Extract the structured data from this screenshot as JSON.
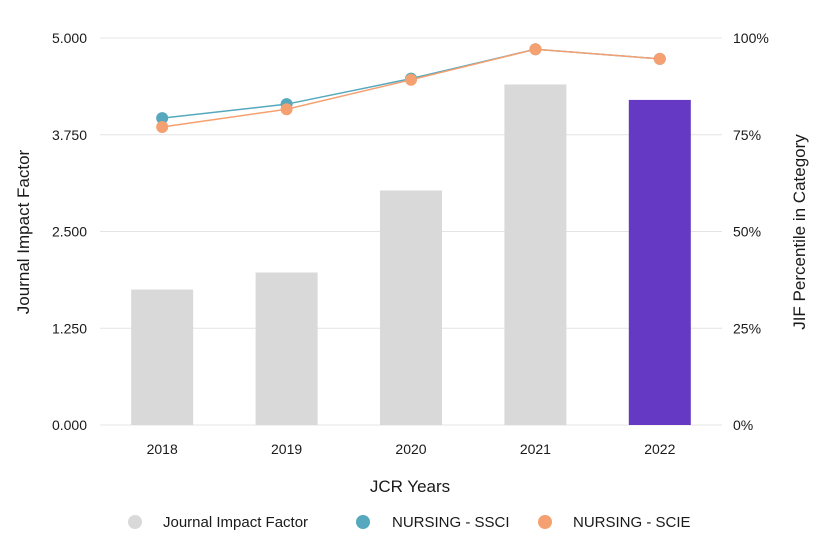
{
  "chart_data": {
    "type": "bar",
    "categories": [
      "2018",
      "2019",
      "2020",
      "2021",
      "2022"
    ],
    "xlabel": "JCR Years",
    "ylabel": "Journal Impact Factor",
    "y2label": "JIF Percentile in Category",
    "ylim": [
      0,
      5
    ],
    "y2lim": [
      0,
      100
    ],
    "yticks": [
      "0.000",
      "1.250",
      "2.500",
      "3.750",
      "5.000"
    ],
    "y2ticks": [
      "0%",
      "25%",
      "50%",
      "75%",
      "100%"
    ],
    "grid": true,
    "legend_position": "bottom",
    "bars": {
      "name": "Journal Impact Factor",
      "values": [
        1.75,
        1.97,
        3.03,
        4.4,
        4.2
      ],
      "color": "#d9d9d9",
      "highlight_color": "#6639c4",
      "highlight_index": 4
    },
    "series": [
      {
        "name": "NURSING - SSCI",
        "values": [
          79.3,
          82.9,
          89.5,
          97.1,
          94.6
        ],
        "color": "#55a8bd"
      },
      {
        "name": "NURSING - SCIE",
        "values": [
          77.0,
          81.6,
          89.2,
          97.1,
          94.6
        ],
        "color": "#f5a070"
      }
    ]
  }
}
